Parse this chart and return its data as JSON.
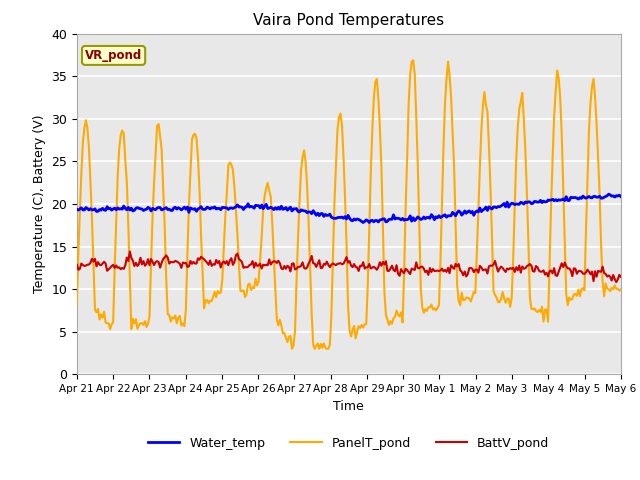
{
  "title": "Vaira Pond Temperatures",
  "xlabel": "Time",
  "ylabel": "Temperature (C), Battery (V)",
  "site_label": "VR_pond",
  "ylim": [
    0,
    40
  ],
  "yticks": [
    0,
    5,
    10,
    15,
    20,
    25,
    30,
    35,
    40
  ],
  "xtick_labels": [
    "Apr 21",
    "Apr 22",
    "Apr 23",
    "Apr 24",
    "Apr 25",
    "Apr 26",
    "Apr 27",
    "Apr 28",
    "Apr 29",
    "Apr 30",
    "May 1",
    "May 2",
    "May 3",
    "May 4",
    "May 5",
    "May 6"
  ],
  "colors": {
    "water": "#0000ff",
    "panel": "#ffaa00",
    "batt": "#cc0000",
    "bg": "#e8e8e8",
    "site_box_face": "#ffffcc",
    "site_box_edge": "#999900",
    "site_text": "#880000"
  },
  "linewidths": {
    "water": 2.0,
    "panel": 1.5,
    "batt": 1.5
  }
}
